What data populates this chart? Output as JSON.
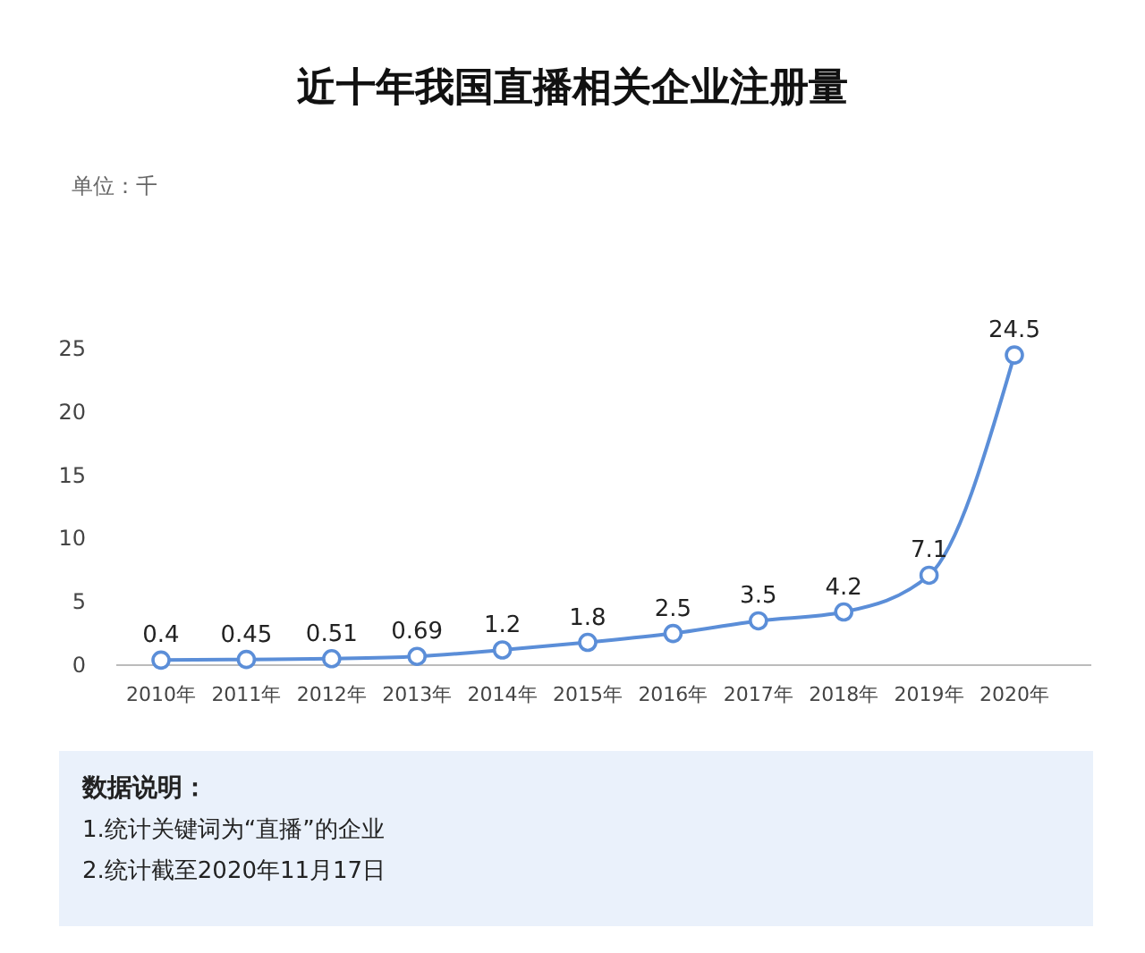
{
  "chart_data": {
    "type": "line",
    "title": "近十年我国直播相关企业注册量",
    "categories": [
      "2010年",
      "2011年",
      "2012年",
      "2013年",
      "2014年",
      "2015年",
      "2016年",
      "2017年",
      "2018年",
      "2019年",
      "2020年"
    ],
    "series": [
      {
        "color": "#5b8ed8",
        "values": [
          0.4,
          0.45,
          0.51,
          0.69,
          1.2,
          1.8,
          2.5,
          3.5,
          4.2,
          7.1,
          24.5
        ]
      }
    ],
    "ylim": [
      0,
      25
    ],
    "yticks": [
      0,
      5,
      10,
      15,
      20,
      25
    ],
    "grid": false,
    "marker": "circle",
    "line_style": "solid",
    "data_labels": true,
    "annotations": [
      "单位：千",
      "数据说明：",
      "1.统计关键词为“直播”的企业",
      "2.统计截至2020年11月17日"
    ]
  }
}
